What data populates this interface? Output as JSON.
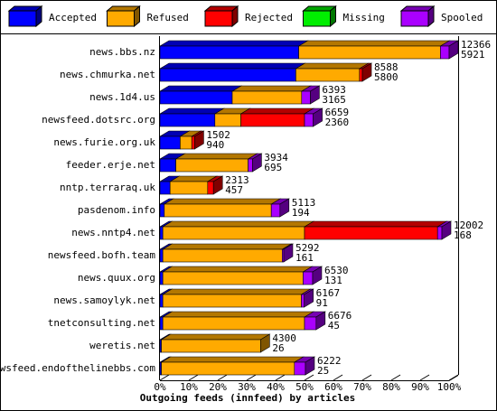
{
  "chart_data": {
    "type": "bar",
    "orientation": "horizontal",
    "stacked": true,
    "xlabel": "Outgoing feeds (innfeed) by articles",
    "categories": [
      "news.bbs.nz",
      "news.chmurka.net",
      "news.1d4.us",
      "newsfeed.dotsrc.org",
      "news.furie.org.uk",
      "feeder.erje.net",
      "nntp.terraraq.uk",
      "pasdenom.info",
      "news.nntp4.net",
      "newsfeed.bofh.team",
      "news.quux.org",
      "news.samoylyk.net",
      "tnetconsulting.net",
      "weretis.net",
      "newsfeed.endofthelinebbs.com"
    ],
    "series": [
      {
        "name": "Accepted",
        "color": "#0000ff",
        "values": [
          48,
          47,
          25,
          19,
          7,
          5.5,
          3.5,
          1.5,
          1,
          1,
          1,
          1,
          1,
          0.5,
          0.5
        ]
      },
      {
        "name": "Refused",
        "color": "#ffaa00",
        "values": [
          49,
          22,
          24,
          9,
          4,
          25,
          13,
          37,
          49,
          41.3,
          48.5,
          47.9,
          49,
          34.3,
          46
        ]
      },
      {
        "name": "Rejected",
        "color": "#ff0000",
        "values": [
          0,
          1,
          0,
          22,
          1,
          0,
          2,
          0,
          46,
          0,
          0,
          0,
          0,
          0,
          0
        ]
      },
      {
        "name": "Missing",
        "color": "#00ee00",
        "values": [
          0,
          0,
          0,
          0,
          0,
          0,
          0,
          0,
          0,
          0,
          0,
          0,
          0,
          0,
          0
        ]
      },
      {
        "name": "Spooled",
        "color": "#aa00ff",
        "values": [
          3,
          0,
          3,
          3,
          0,
          1.5,
          0,
          3,
          1.5,
          0.5,
          3.3,
          1,
          4,
          0,
          3.8
        ]
      }
    ],
    "offered": [
      12366,
      8588,
      6393,
      6659,
      1502,
      3934,
      2313,
      5113,
      12002,
      5292,
      6530,
      6167,
      6676,
      4300,
      6222
    ],
    "accepted_counts": [
      5921,
      5800,
      3165,
      2360,
      940,
      695,
      457,
      194,
      168,
      161,
      131,
      91,
      45,
      26,
      25
    ],
    "xlim": [
      0,
      100
    ],
    "xticks": [
      {
        "value": 0,
        "label": "0%"
      },
      {
        "value": 10,
        "label": "10%"
      },
      {
        "value": 20,
        "label": "20%"
      },
      {
        "value": 30,
        "label": "30%"
      },
      {
        "value": 40,
        "label": "40%"
      },
      {
        "value": 50,
        "label": "50%"
      },
      {
        "value": 60,
        "label": "60%"
      },
      {
        "value": 70,
        "label": "70%"
      },
      {
        "value": 80,
        "label": "80%"
      },
      {
        "value": 90,
        "label": "90%"
      },
      {
        "value": 100,
        "label": "100%"
      }
    ]
  }
}
